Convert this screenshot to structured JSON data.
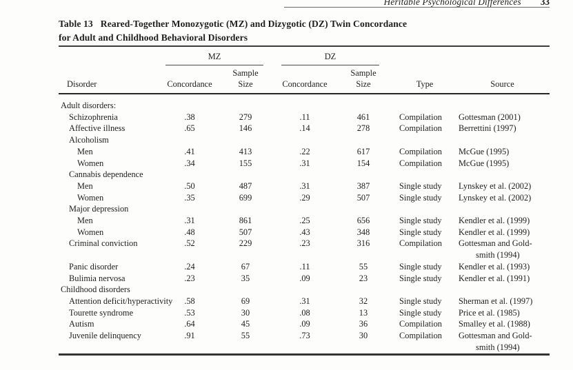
{
  "running_head": {
    "title": "Heritable Psychological Differences",
    "page_number": "33"
  },
  "table": {
    "label": "Table 13",
    "title_rest": "Reared-Together Monozygotic (MZ) and Dizygotic (DZ) Twin Concordance",
    "title_line2": "for Adult and Childhood Behavioral Disorders",
    "group_headers": {
      "mz": "MZ",
      "dz": "DZ"
    },
    "column_headers": {
      "disorder": "Disorder",
      "mz_concordance": "Concordance",
      "mz_sample_line1": "Sample",
      "mz_sample_line2": "Size",
      "dz_concordance": "Concordance",
      "dz_sample_line1": "Sample",
      "dz_sample_line2": "Size",
      "type": "Type",
      "source": "Source"
    },
    "rows": [
      {
        "label": "Adult disorders:",
        "indent": 0,
        "mz_concordance": "",
        "mz_sample": "",
        "dz_concordance": "",
        "dz_sample": "",
        "type": "",
        "source": []
      },
      {
        "label": "Schizophrenia",
        "indent": 1,
        "mz_concordance": ".38",
        "mz_sample": "279",
        "dz_concordance": ".11",
        "dz_sample": "461",
        "type": "Compilation",
        "source": [
          "Gottesman (2001)"
        ]
      },
      {
        "label": "Affective illness",
        "indent": 1,
        "mz_concordance": ".65",
        "mz_sample": "146",
        "dz_concordance": ".14",
        "dz_sample": "278",
        "type": "Compilation",
        "source": [
          "Berrettini (1997)"
        ]
      },
      {
        "label": "Alcoholism",
        "indent": 1,
        "mz_concordance": "",
        "mz_sample": "",
        "dz_concordance": "",
        "dz_sample": "",
        "type": "",
        "source": []
      },
      {
        "label": "Men",
        "indent": 2,
        "mz_concordance": ".41",
        "mz_sample": "413",
        "dz_concordance": ".22",
        "dz_sample": "617",
        "type": "Compilation",
        "source": [
          "McGue (1995)"
        ]
      },
      {
        "label": "Women",
        "indent": 2,
        "mz_concordance": ".34",
        "mz_sample": "155",
        "dz_concordance": ".31",
        "dz_sample": "154",
        "type": "Compilation",
        "source": [
          "McGue (1995)"
        ]
      },
      {
        "label": "Cannabis dependence",
        "indent": 1,
        "mz_concordance": "",
        "mz_sample": "",
        "dz_concordance": "",
        "dz_sample": "",
        "type": "",
        "source": []
      },
      {
        "label": "Men",
        "indent": 2,
        "mz_concordance": ".50",
        "mz_sample": "487",
        "dz_concordance": ".31",
        "dz_sample": "387",
        "type": "Single study",
        "source": [
          "Lynskey et al. (2002)"
        ]
      },
      {
        "label": "Women",
        "indent": 2,
        "mz_concordance": ".35",
        "mz_sample": "699",
        "dz_concordance": ".29",
        "dz_sample": "507",
        "type": "Single study",
        "source": [
          "Lynskey et al. (2002)"
        ]
      },
      {
        "label": "Major depression",
        "indent": 1,
        "mz_concordance": "",
        "mz_sample": "",
        "dz_concordance": "",
        "dz_sample": "",
        "type": "",
        "source": []
      },
      {
        "label": "Men",
        "indent": 2,
        "mz_concordance": ".31",
        "mz_sample": "861",
        "dz_concordance": ".25",
        "dz_sample": "656",
        "type": "Single study",
        "source": [
          "Kendler et al. (1999)"
        ]
      },
      {
        "label": "Women",
        "indent": 2,
        "mz_concordance": ".48",
        "mz_sample": "507",
        "dz_concordance": ".43",
        "dz_sample": "348",
        "type": "Single study",
        "source": [
          "Kendler et al. (1999)"
        ]
      },
      {
        "label": "Criminal conviction",
        "indent": 1,
        "mz_concordance": ".52",
        "mz_sample": "229",
        "dz_concordance": ".23",
        "dz_sample": "316",
        "type": "Compilation",
        "source": [
          "Gottesman and Gold-",
          "smith (1994)"
        ]
      },
      {
        "label": "Panic disorder",
        "indent": 1,
        "mz_concordance": ".24",
        "mz_sample": "67",
        "dz_concordance": ".11",
        "dz_sample": "55",
        "type": "Single study",
        "source": [
          "Kendler et al. (1993)"
        ]
      },
      {
        "label": "Bulimia nervosa",
        "indent": 1,
        "mz_concordance": ".23",
        "mz_sample": "35",
        "dz_concordance": ".09",
        "dz_sample": "23",
        "type": "Single study",
        "source": [
          "Kendler et al. (1991)"
        ]
      },
      {
        "label": "Childhood disorders",
        "indent": 0,
        "mz_concordance": "",
        "mz_sample": "",
        "dz_concordance": "",
        "dz_sample": "",
        "type": "",
        "source": []
      },
      {
        "label": "Attention deficit/hyperactivity",
        "indent": 1,
        "mz_concordance": ".58",
        "mz_sample": "69",
        "dz_concordance": ".31",
        "dz_sample": "32",
        "type": "Single study",
        "source": [
          "Sherman et al. (1997)"
        ]
      },
      {
        "label": "Tourette syndrome",
        "indent": 1,
        "mz_concordance": ".53",
        "mz_sample": "30",
        "dz_concordance": ".08",
        "dz_sample": "13",
        "type": "Single study",
        "source": [
          "Price et al. (1985)"
        ]
      },
      {
        "label": "Autism",
        "indent": 1,
        "mz_concordance": ".64",
        "mz_sample": "45",
        "dz_concordance": ".09",
        "dz_sample": "36",
        "type": "Compilation",
        "source": [
          "Smalley et al. (1988)"
        ]
      },
      {
        "label": "Juvenile delinquency",
        "indent": 1,
        "mz_concordance": ".91",
        "mz_sample": "55",
        "dz_concordance": ".73",
        "dz_sample": "30",
        "type": "Compilation",
        "source": [
          "Gottesman and Gold-",
          "smith (1994)"
        ]
      }
    ]
  }
}
